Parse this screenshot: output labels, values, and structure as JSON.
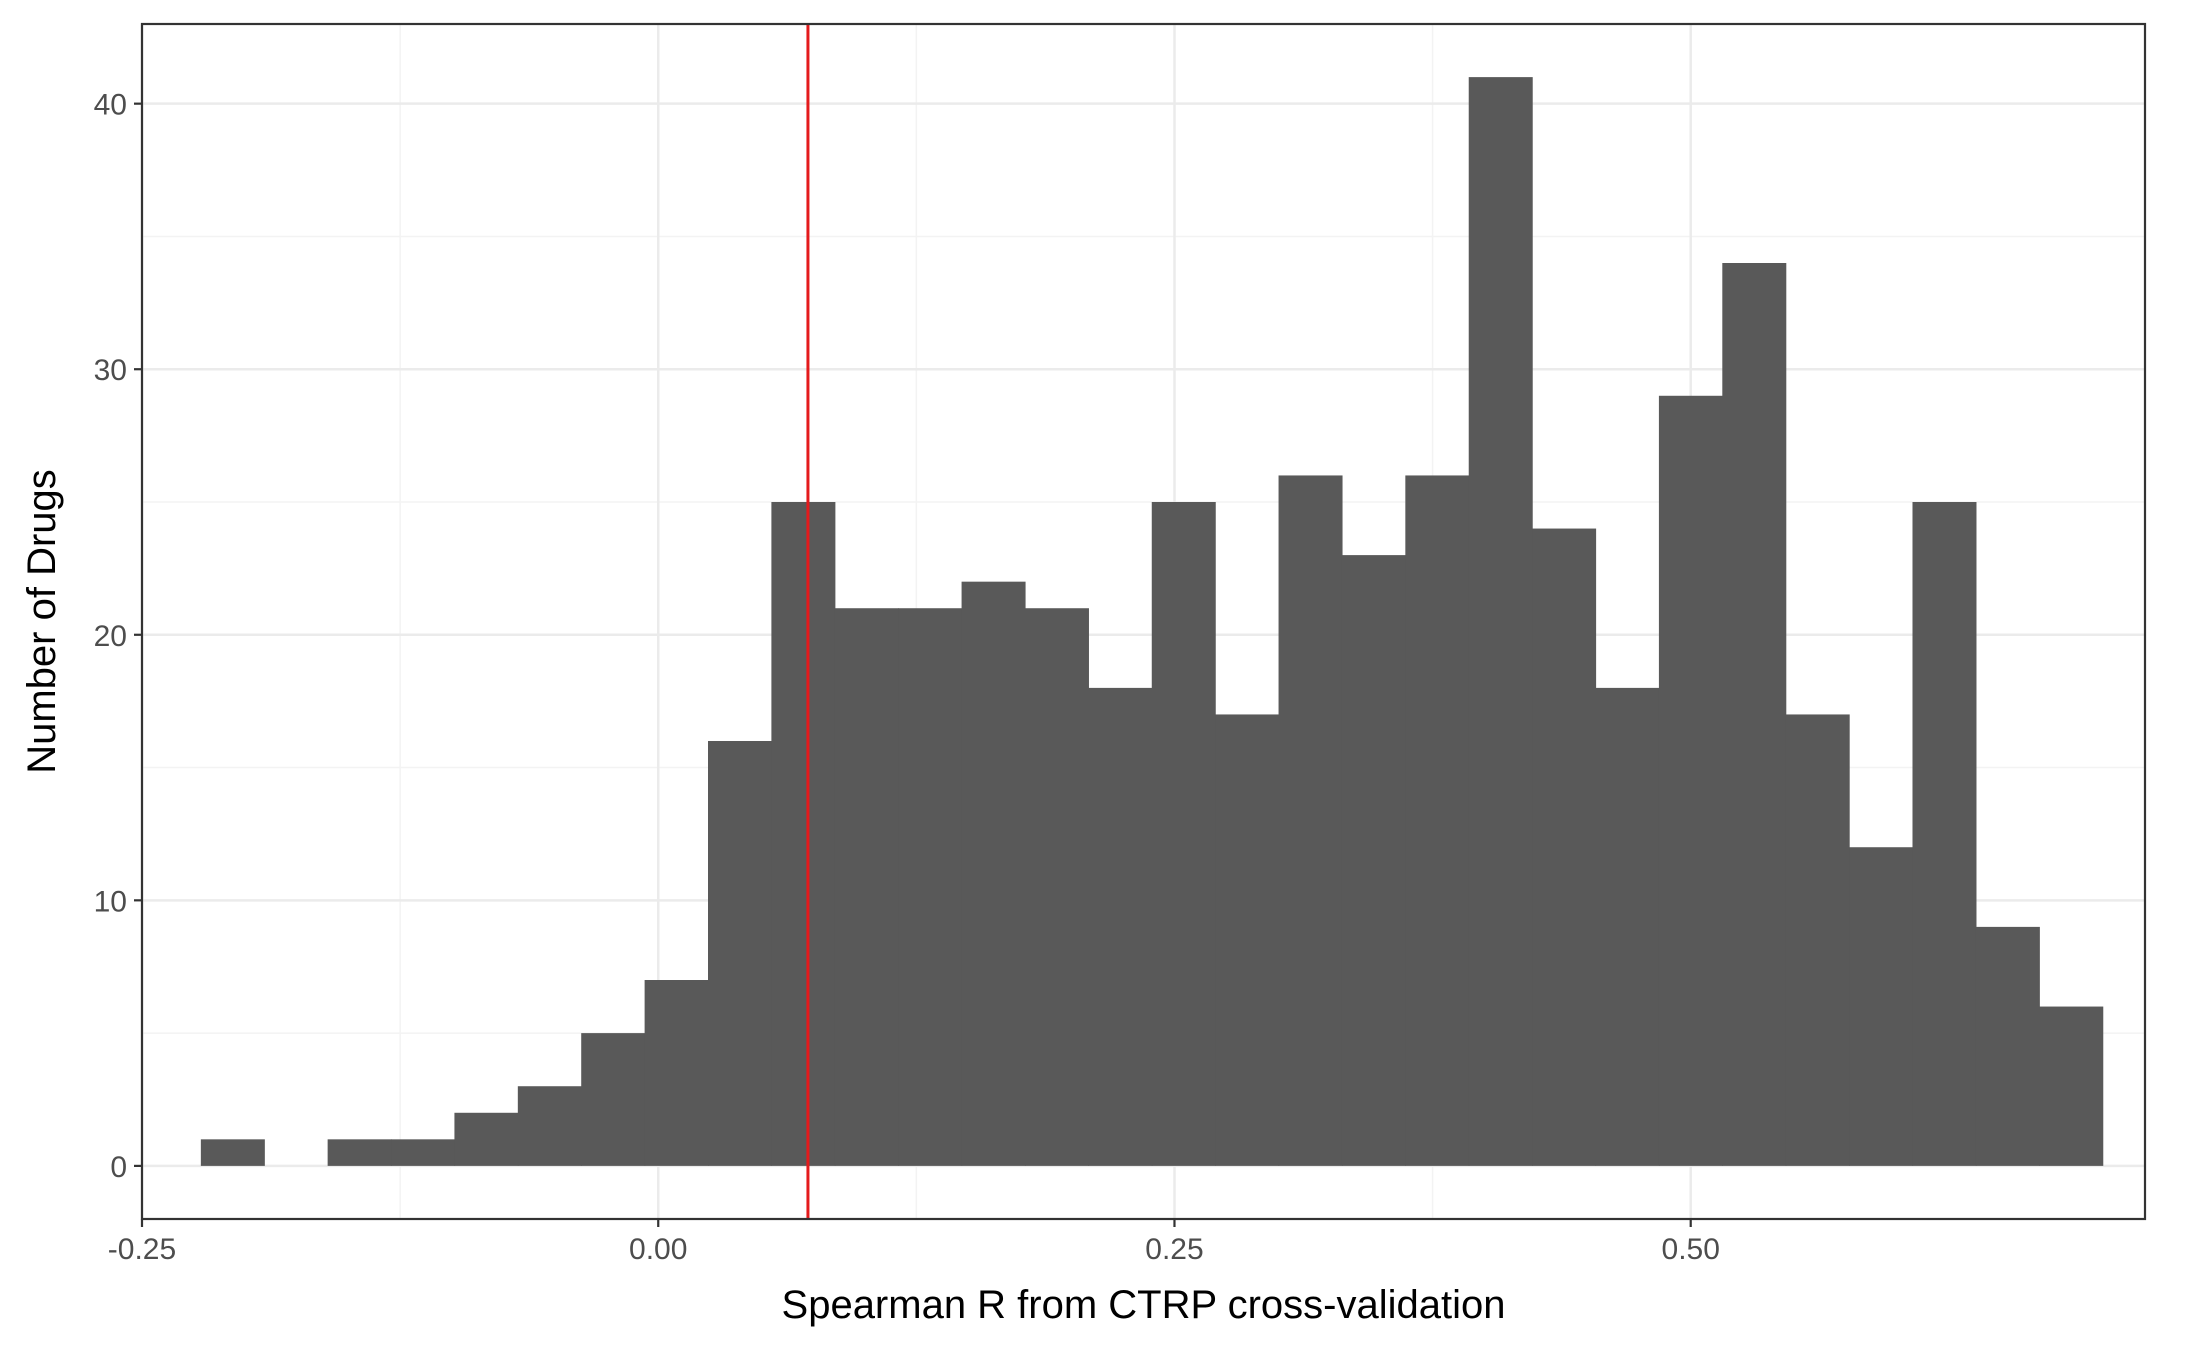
{
  "chart_data": {
    "type": "bar",
    "subtype": "histogram",
    "xlabel": "Spearman R from CTRP cross-validation",
    "ylabel": "Number of Drugs",
    "xlim": [
      -0.25,
      0.72
    ],
    "ylim": [
      -2,
      43
    ],
    "x_ticks": [
      -0.25,
      0.0,
      0.25,
      0.5
    ],
    "x_tick_labels": [
      "-0.25",
      "0.00",
      "0.25",
      "0.50"
    ],
    "y_ticks": [
      0,
      10,
      20,
      30,
      40
    ],
    "y_tick_labels": [
      "0",
      "10",
      "20",
      "30",
      "40"
    ],
    "bin_width": 0.0307,
    "bin_start": -0.2215,
    "values": [
      1,
      0,
      1,
      1,
      2,
      3,
      5,
      7,
      16,
      25,
      21,
      21,
      22,
      21,
      18,
      25,
      17,
      26,
      23,
      26,
      41,
      24,
      18,
      29,
      34,
      17,
      12,
      25,
      9,
      6
    ],
    "vline_x": 0.0725,
    "grid": true,
    "legend": "none",
    "colors": {
      "bar": "#595959",
      "vline": "#e41a1c",
      "grid_major": "#ebebeb",
      "grid_minor": "#f3f3f3",
      "panel_border": "#333333",
      "tick_text": "#4d4d4d"
    }
  }
}
